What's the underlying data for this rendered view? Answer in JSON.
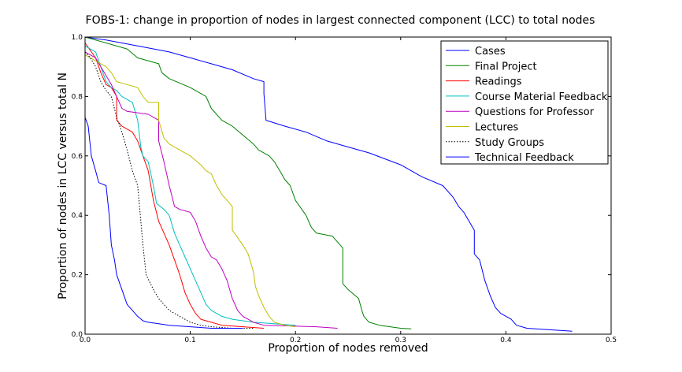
{
  "chart_data": {
    "type": "line",
    "title": "FOBS-1:  change in proportion of nodes in largest connected component (LCC) to total nodes",
    "xlabel": "Proportion of nodes removed",
    "ylabel": "Proportion of nodes in LCC versus total N",
    "xlim": [
      0.0,
      0.5
    ],
    "ylim": [
      0.0,
      1.0
    ],
    "xticks": [
      "0.0",
      "0.1",
      "0.2",
      "0.3",
      "0.4",
      "0.5"
    ],
    "yticks": [
      "0.0",
      "0.2",
      "0.4",
      "0.6",
      "0.8",
      "1.0"
    ],
    "grid": false,
    "legend_position": "top-right",
    "series": [
      {
        "name": "Cases",
        "color": "#0000ff",
        "dash": "solid",
        "points": [
          [
            0.0,
            1.0
          ],
          [
            0.02,
            0.99
          ],
          [
            0.05,
            0.97
          ],
          [
            0.08,
            0.95
          ],
          [
            0.1,
            0.93
          ],
          [
            0.12,
            0.91
          ],
          [
            0.14,
            0.89
          ],
          [
            0.16,
            0.86
          ],
          [
            0.17,
            0.85
          ],
          [
            0.17,
            0.81
          ],
          [
            0.172,
            0.72
          ],
          [
            0.19,
            0.7
          ],
          [
            0.21,
            0.68
          ],
          [
            0.23,
            0.65
          ],
          [
            0.25,
            0.63
          ],
          [
            0.27,
            0.61
          ],
          [
            0.3,
            0.57
          ],
          [
            0.32,
            0.53
          ],
          [
            0.34,
            0.5
          ],
          [
            0.345,
            0.48
          ],
          [
            0.35,
            0.46
          ],
          [
            0.355,
            0.43
          ],
          [
            0.36,
            0.41
          ],
          [
            0.365,
            0.38
          ],
          [
            0.37,
            0.35
          ],
          [
            0.37,
            0.27
          ],
          [
            0.375,
            0.25
          ],
          [
            0.38,
            0.18
          ],
          [
            0.385,
            0.13
          ],
          [
            0.39,
            0.09
          ],
          [
            0.395,
            0.07
          ],
          [
            0.405,
            0.05
          ],
          [
            0.41,
            0.03
          ],
          [
            0.42,
            0.02
          ],
          [
            0.44,
            0.015
          ],
          [
            0.463,
            0.01
          ]
        ]
      },
      {
        "name": "Final Project",
        "color": "#008000",
        "dash": "solid",
        "points": [
          [
            0.0,
            1.0
          ],
          [
            0.02,
            0.98
          ],
          [
            0.04,
            0.96
          ],
          [
            0.05,
            0.93
          ],
          [
            0.07,
            0.91
          ],
          [
            0.073,
            0.88
          ],
          [
            0.08,
            0.86
          ],
          [
            0.1,
            0.83
          ],
          [
            0.115,
            0.8
          ],
          [
            0.12,
            0.76
          ],
          [
            0.13,
            0.72
          ],
          [
            0.14,
            0.7
          ],
          [
            0.15,
            0.67
          ],
          [
            0.16,
            0.64
          ],
          [
            0.165,
            0.62
          ],
          [
            0.175,
            0.6
          ],
          [
            0.18,
            0.58
          ],
          [
            0.185,
            0.55
          ],
          [
            0.19,
            0.52
          ],
          [
            0.195,
            0.5
          ],
          [
            0.2,
            0.45
          ],
          [
            0.21,
            0.4
          ],
          [
            0.215,
            0.36
          ],
          [
            0.22,
            0.34
          ],
          [
            0.235,
            0.33
          ],
          [
            0.245,
            0.29
          ],
          [
            0.245,
            0.17
          ],
          [
            0.25,
            0.15
          ],
          [
            0.26,
            0.12
          ],
          [
            0.263,
            0.08
          ],
          [
            0.265,
            0.06
          ],
          [
            0.27,
            0.04
          ],
          [
            0.28,
            0.03
          ],
          [
            0.3,
            0.02
          ],
          [
            0.31,
            0.018
          ]
        ]
      },
      {
        "name": "Readings",
        "color": "#ff0000",
        "dash": "solid",
        "points": [
          [
            0.0,
            0.98
          ],
          [
            0.01,
            0.93
          ],
          [
            0.015,
            0.88
          ],
          [
            0.02,
            0.84
          ],
          [
            0.025,
            0.83
          ],
          [
            0.03,
            0.8
          ],
          [
            0.03,
            0.72
          ],
          [
            0.035,
            0.7
          ],
          [
            0.045,
            0.68
          ],
          [
            0.05,
            0.65
          ],
          [
            0.055,
            0.6
          ],
          [
            0.06,
            0.55
          ],
          [
            0.065,
            0.45
          ],
          [
            0.07,
            0.38
          ],
          [
            0.075,
            0.34
          ],
          [
            0.08,
            0.3
          ],
          [
            0.085,
            0.25
          ],
          [
            0.09,
            0.2
          ],
          [
            0.095,
            0.14
          ],
          [
            0.1,
            0.1
          ],
          [
            0.105,
            0.07
          ],
          [
            0.11,
            0.05
          ],
          [
            0.12,
            0.04
          ],
          [
            0.13,
            0.03
          ],
          [
            0.15,
            0.025
          ],
          [
            0.17,
            0.02
          ]
        ]
      },
      {
        "name": "Course Material Feedback",
        "color": "#00bfbf",
        "dash": "solid",
        "points": [
          [
            0.0,
            0.97
          ],
          [
            0.01,
            0.95
          ],
          [
            0.015,
            0.9
          ],
          [
            0.02,
            0.85
          ],
          [
            0.025,
            0.83
          ],
          [
            0.03,
            0.82
          ],
          [
            0.035,
            0.8
          ],
          [
            0.04,
            0.79
          ],
          [
            0.045,
            0.78
          ],
          [
            0.05,
            0.72
          ],
          [
            0.053,
            0.63
          ],
          [
            0.055,
            0.6
          ],
          [
            0.06,
            0.58
          ],
          [
            0.065,
            0.5
          ],
          [
            0.068,
            0.44
          ],
          [
            0.075,
            0.42
          ],
          [
            0.08,
            0.4
          ],
          [
            0.085,
            0.34
          ],
          [
            0.09,
            0.3
          ],
          [
            0.095,
            0.26
          ],
          [
            0.1,
            0.22
          ],
          [
            0.105,
            0.18
          ],
          [
            0.11,
            0.14
          ],
          [
            0.115,
            0.1
          ],
          [
            0.12,
            0.08
          ],
          [
            0.13,
            0.06
          ],
          [
            0.14,
            0.05
          ],
          [
            0.16,
            0.04
          ],
          [
            0.18,
            0.035
          ],
          [
            0.2,
            0.03
          ]
        ]
      },
      {
        "name": "Questions for Professor",
        "color": "#bf00bf",
        "dash": "solid",
        "points": [
          [
            0.0,
            0.95
          ],
          [
            0.01,
            0.93
          ],
          [
            0.015,
            0.9
          ],
          [
            0.02,
            0.87
          ],
          [
            0.025,
            0.84
          ],
          [
            0.03,
            0.8
          ],
          [
            0.035,
            0.76
          ],
          [
            0.04,
            0.75
          ],
          [
            0.06,
            0.74
          ],
          [
            0.07,
            0.72
          ],
          [
            0.07,
            0.65
          ],
          [
            0.075,
            0.58
          ],
          [
            0.08,
            0.5
          ],
          [
            0.085,
            0.43
          ],
          [
            0.09,
            0.42
          ],
          [
            0.1,
            0.41
          ],
          [
            0.105,
            0.38
          ],
          [
            0.11,
            0.33
          ],
          [
            0.115,
            0.29
          ],
          [
            0.12,
            0.26
          ],
          [
            0.125,
            0.25
          ],
          [
            0.13,
            0.22
          ],
          [
            0.135,
            0.18
          ],
          [
            0.14,
            0.12
          ],
          [
            0.145,
            0.08
          ],
          [
            0.15,
            0.06
          ],
          [
            0.155,
            0.05
          ],
          [
            0.16,
            0.04
          ],
          [
            0.17,
            0.03
          ],
          [
            0.22,
            0.025
          ],
          [
            0.24,
            0.02
          ]
        ]
      },
      {
        "name": "Lectures",
        "color": "#bfbf00",
        "dash": "solid",
        "points": [
          [
            0.0,
            0.94
          ],
          [
            0.01,
            0.92
          ],
          [
            0.02,
            0.9
          ],
          [
            0.025,
            0.88
          ],
          [
            0.03,
            0.85
          ],
          [
            0.04,
            0.84
          ],
          [
            0.05,
            0.83
          ],
          [
            0.055,
            0.8
          ],
          [
            0.06,
            0.78
          ],
          [
            0.07,
            0.78
          ],
          [
            0.07,
            0.72
          ],
          [
            0.075,
            0.66
          ],
          [
            0.08,
            0.64
          ],
          [
            0.09,
            0.62
          ],
          [
            0.1,
            0.6
          ],
          [
            0.11,
            0.57
          ],
          [
            0.115,
            0.55
          ],
          [
            0.12,
            0.54
          ],
          [
            0.125,
            0.5
          ],
          [
            0.13,
            0.47
          ],
          [
            0.135,
            0.45
          ],
          [
            0.14,
            0.43
          ],
          [
            0.14,
            0.38
          ],
          [
            0.14,
            0.35
          ],
          [
            0.15,
            0.3
          ],
          [
            0.155,
            0.27
          ],
          [
            0.16,
            0.21
          ],
          [
            0.162,
            0.16
          ],
          [
            0.165,
            0.13
          ],
          [
            0.17,
            0.09
          ],
          [
            0.175,
            0.06
          ],
          [
            0.18,
            0.04
          ],
          [
            0.19,
            0.03
          ],
          [
            0.2,
            0.025
          ]
        ]
      },
      {
        "name": "Study Groups",
        "color": "#000000",
        "dash": "dotted",
        "points": [
          [
            0.0,
            0.95
          ],
          [
            0.005,
            0.93
          ],
          [
            0.01,
            0.9
          ],
          [
            0.015,
            0.85
          ],
          [
            0.02,
            0.82
          ],
          [
            0.025,
            0.8
          ],
          [
            0.03,
            0.73
          ],
          [
            0.035,
            0.68
          ],
          [
            0.04,
            0.62
          ],
          [
            0.045,
            0.55
          ],
          [
            0.05,
            0.5
          ],
          [
            0.052,
            0.42
          ],
          [
            0.055,
            0.3
          ],
          [
            0.058,
            0.2
          ],
          [
            0.065,
            0.15
          ],
          [
            0.07,
            0.12
          ],
          [
            0.075,
            0.1
          ],
          [
            0.08,
            0.08
          ],
          [
            0.085,
            0.07
          ],
          [
            0.09,
            0.06
          ],
          [
            0.1,
            0.04
          ],
          [
            0.11,
            0.03
          ],
          [
            0.12,
            0.025
          ],
          [
            0.14,
            0.02
          ],
          [
            0.16,
            0.02
          ]
        ]
      },
      {
        "name": "Technical Feedback",
        "color": "#0000ff",
        "dash": "solid",
        "points": [
          [
            0.0,
            0.73
          ],
          [
            0.003,
            0.7
          ],
          [
            0.006,
            0.6
          ],
          [
            0.01,
            0.55
          ],
          [
            0.013,
            0.51
          ],
          [
            0.02,
            0.5
          ],
          [
            0.023,
            0.4
          ],
          [
            0.025,
            0.3
          ],
          [
            0.028,
            0.25
          ],
          [
            0.03,
            0.2
          ],
          [
            0.035,
            0.15
          ],
          [
            0.04,
            0.1
          ],
          [
            0.045,
            0.08
          ],
          [
            0.05,
            0.06
          ],
          [
            0.055,
            0.045
          ],
          [
            0.06,
            0.04
          ],
          [
            0.07,
            0.035
          ],
          [
            0.08,
            0.03
          ],
          [
            0.1,
            0.025
          ],
          [
            0.12,
            0.02
          ],
          [
            0.15,
            0.02
          ]
        ]
      }
    ]
  }
}
